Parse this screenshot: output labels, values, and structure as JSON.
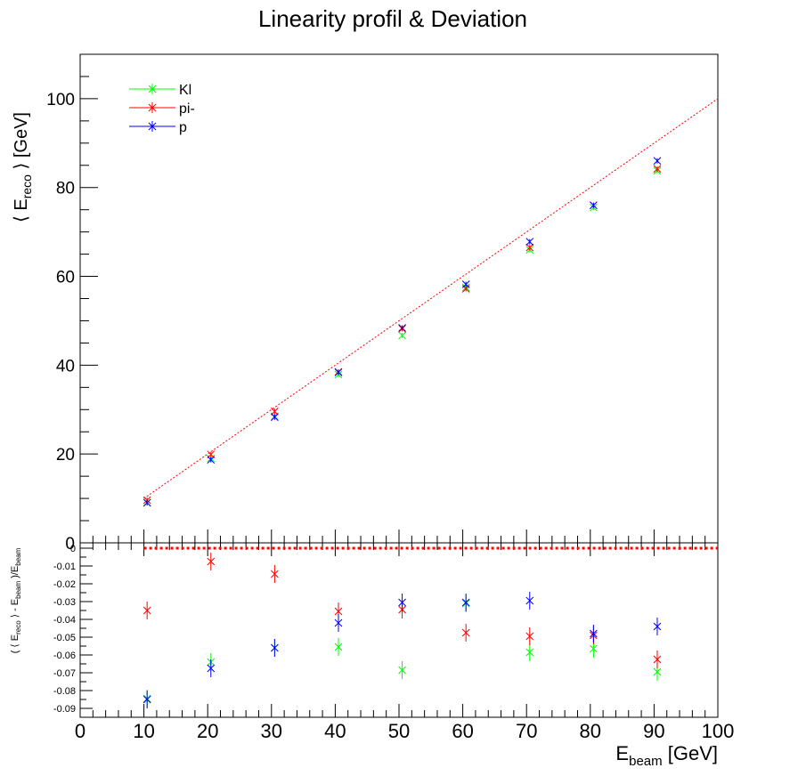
{
  "title": "Linearity profil & Deviation",
  "colors": {
    "Kl": "#00ff00",
    "pi-": "#ff0000",
    "p": "#0000ff",
    "reference": "#ff0000"
  },
  "chart_data": [
    {
      "type": "scatter",
      "panel": "top",
      "ylabel": {
        "pre": "⟨ E",
        "sub": "reco",
        "post": " ⟩ [GeV]"
      },
      "xlim": [
        0,
        100
      ],
      "ylim": [
        0,
        110
      ],
      "yticks": [
        0,
        20,
        40,
        60,
        80,
        100
      ],
      "reference_line": {
        "from": [
          10,
          10
        ],
        "to": [
          100,
          100
        ]
      },
      "legend": {
        "position": "top-left",
        "entries": [
          "Kl",
          "pi-",
          "p"
        ]
      },
      "x": [
        10.5,
        20.5,
        30.5,
        40.5,
        50.5,
        60.5,
        70.5,
        80.5,
        90.5
      ],
      "series": [
        {
          "name": "Kl",
          "values": [
            9.1,
            19.0,
            28.5,
            37.9,
            46.7,
            57.5,
            66.0,
            75.5,
            83.8
          ],
          "yerr": [
            0.6,
            0.6,
            0.6,
            0.6,
            0.6,
            0.6,
            0.6,
            0.6,
            0.6
          ]
        },
        {
          "name": "pi-",
          "values": [
            9.6,
            19.9,
            29.6,
            38.5,
            48.2,
            57.2,
            66.5,
            76.0,
            84.2
          ],
          "yerr": [
            0.6,
            0.6,
            0.6,
            0.6,
            0.6,
            0.6,
            0.6,
            0.6,
            0.6
          ]
        },
        {
          "name": "p",
          "values": [
            9.0,
            18.7,
            28.3,
            38.4,
            48.4,
            58.2,
            67.8,
            76.0,
            86.0
          ],
          "yerr": [
            0.6,
            0.6,
            0.6,
            0.6,
            0.6,
            0.6,
            0.6,
            0.6,
            0.6
          ]
        }
      ]
    },
    {
      "type": "scatter",
      "panel": "bottom",
      "xlabel": {
        "pre": "E",
        "sub": "beam",
        "post": " [GeV]"
      },
      "ylabel": {
        "a": "( ⟨ E",
        "sub1": "reco",
        "b": " ⟩ - E",
        "sub2": "beam",
        "c": " )/E",
        "sub3": "beam"
      },
      "xlim": [
        0,
        100
      ],
      "ylim": [
        -0.095,
        0.003
      ],
      "xticks": [
        0,
        10,
        20,
        30,
        40,
        50,
        60,
        70,
        80,
        90,
        100
      ],
      "yticks": [
        0,
        -0.01,
        -0.02,
        -0.03,
        -0.04,
        -0.05,
        -0.06,
        -0.07,
        -0.08,
        -0.09
      ],
      "ytick_labels": [
        "0",
        "-0.01",
        "-0.02",
        "-0.03",
        "-0.04",
        "-0.05",
        "-0.06",
        "-0.07",
        "-0.08",
        "-0.09"
      ],
      "reference_line": {
        "from": [
          10,
          0
        ],
        "to": [
          100,
          0
        ]
      },
      "x": [
        10.5,
        20.5,
        30.5,
        40.5,
        50.5,
        60.5,
        70.5,
        80.5,
        90.5
      ],
      "series": [
        {
          "name": "Kl",
          "values": [
            -0.0845,
            -0.064,
            -0.056,
            -0.0555,
            -0.0685,
            -0.031,
            -0.0585,
            -0.0565,
            -0.0695
          ],
          "yerr": [
            0.005,
            0.005,
            0.005,
            0.005,
            0.005,
            0.005,
            0.005,
            0.005,
            0.005
          ]
        },
        {
          "name": "pi-",
          "values": [
            -0.035,
            -0.0075,
            -0.0145,
            -0.0355,
            -0.0345,
            -0.0475,
            -0.0495,
            -0.049,
            -0.0625
          ],
          "yerr": [
            0.005,
            0.005,
            0.005,
            0.005,
            0.005,
            0.005,
            0.005,
            0.005,
            0.005
          ]
        },
        {
          "name": "p",
          "values": [
            -0.085,
            -0.0675,
            -0.056,
            -0.042,
            -0.0305,
            -0.0305,
            -0.0295,
            -0.048,
            -0.044
          ],
          "yerr": [
            0.005,
            0.005,
            0.005,
            0.005,
            0.005,
            0.005,
            0.005,
            0.005,
            0.005
          ]
        }
      ]
    }
  ]
}
